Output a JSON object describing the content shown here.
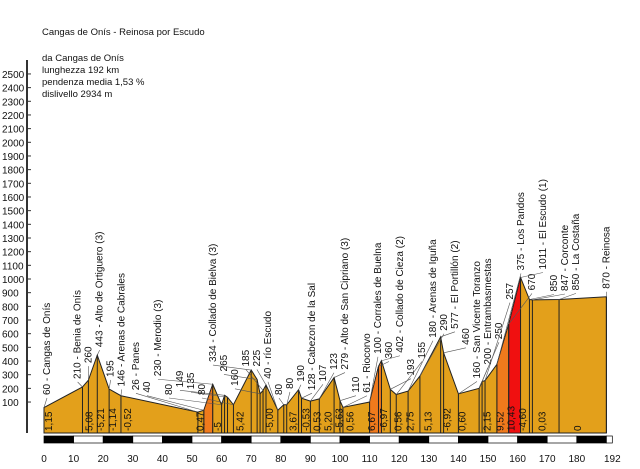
{
  "chart_data": {
    "type": "area",
    "title": "Cangas de Onís - Reinosa por Escudo",
    "info": [
      "da Cangas de Onís",
      "lunghezza 192 km",
      "pendenza media 1,53 %",
      "dislivello 2934 m"
    ],
    "xlabel": "km",
    "ylabel": "m",
    "xlim": [
      0,
      192
    ],
    "ylim": [
      0,
      2500
    ],
    "x_ticks": [
      0,
      10,
      20,
      30,
      40,
      50,
      60,
      70,
      80,
      90,
      100,
      110,
      120,
      130,
      140,
      150,
      160,
      170,
      180,
      192
    ],
    "y_ticks": [
      100,
      200,
      300,
      400,
      500,
      600,
      700,
      800,
      900,
      1000,
      1100,
      1200,
      1300,
      1400,
      1500,
      1600,
      1700,
      1800,
      1900,
      2000,
      2100,
      2200,
      2300,
      2400,
      2500
    ],
    "colors": {
      "fill": "#e3a01b",
      "steep": "#f07a1c",
      "very_steep": "#f01010",
      "line": "#222222"
    },
    "profile": [
      {
        "km": 0,
        "elev": 60,
        "label": "60 - Cangas de Onís"
      },
      {
        "km": 13,
        "elev": 210,
        "label": "210 - Benia de Onís"
      },
      {
        "km": 15,
        "elev": 260,
        "label": "260"
      },
      {
        "km": 18,
        "elev": 443,
        "label": "443 - Alto de Ortiguero (3)"
      },
      {
        "km": 22,
        "elev": 195,
        "label": "195"
      },
      {
        "km": 26,
        "elev": 146,
        "label": "146 - Arenas de Cabrales"
      },
      {
        "km": 52,
        "elev": 26,
        "label": "26 - Panes"
      },
      {
        "km": 54,
        "elev": 40,
        "label": "40"
      },
      {
        "km": 57,
        "elev": 230,
        "label": "230 - Merodio (3)"
      },
      {
        "km": 60,
        "elev": 80,
        "label": "80"
      },
      {
        "km": 61,
        "elev": 149,
        "label": "149"
      },
      {
        "km": 62,
        "elev": 135,
        "label": "135"
      },
      {
        "km": 64,
        "elev": 80,
        "label": "80"
      },
      {
        "km": 70,
        "elev": 334,
        "label": "334 - Collado de Bielva (3)"
      },
      {
        "km": 72,
        "elev": 265,
        "label": "265"
      },
      {
        "km": 73,
        "elev": 160,
        "label": "160"
      },
      {
        "km": 74,
        "elev": 185,
        "label": "185"
      },
      {
        "km": 75,
        "elev": 225,
        "label": "225"
      },
      {
        "km": 79,
        "elev": 40,
        "label": "40 - río Escudo"
      },
      {
        "km": 81,
        "elev": 80,
        "label": "80"
      },
      {
        "km": 82,
        "elev": 80,
        "label": "80"
      },
      {
        "km": 86,
        "elev": 190,
        "label": "190"
      },
      {
        "km": 87,
        "elev": 128,
        "label": "128 - Cabezon de la Sal"
      },
      {
        "km": 90,
        "elev": 107,
        "label": "107"
      },
      {
        "km": 93,
        "elev": 123,
        "label": "123"
      },
      {
        "km": 98,
        "elev": 279,
        "label": "279 - Alto de San Cipriano (3)"
      },
      {
        "km": 100,
        "elev": 110,
        "label": "110"
      },
      {
        "km": 101,
        "elev": 61,
        "label": "61 - Riocorvo"
      },
      {
        "km": 110,
        "elev": 100,
        "label": "100 - Corrales de Buelna"
      },
      {
        "km": 113,
        "elev": 360,
        "label": "360"
      },
      {
        "km": 114,
        "elev": 402,
        "label": "402 - Collado de Cieza (2)"
      },
      {
        "km": 117,
        "elev": 193,
        "label": "193"
      },
      {
        "km": 119,
        "elev": 155,
        "label": "155"
      },
      {
        "km": 123,
        "elev": 180,
        "label": "180 - Arenas de Iguña"
      },
      {
        "km": 127,
        "elev": 290,
        "label": "290"
      },
      {
        "km": 134,
        "elev": 577,
        "label": "577 - El Portillón (2)"
      },
      {
        "km": 135,
        "elev": 460,
        "label": "460"
      },
      {
        "km": 140,
        "elev": 160,
        "label": "160 - San Vicente Toranzo"
      },
      {
        "km": 147,
        "elev": 200,
        "label": "200 - Entrambasmestas"
      },
      {
        "km": 148,
        "elev": 250,
        "label": "250"
      },
      {
        "km": 149,
        "elev": 257,
        "label": "257"
      },
      {
        "km": 153,
        "elev": 375,
        "label": "375 - Los Pandos"
      },
      {
        "km": 157,
        "elev": 670,
        "label": "670"
      },
      {
        "km": 161,
        "elev": 1011,
        "label": "1011 - El Escudo (1)"
      },
      {
        "km": 164,
        "elev": 850,
        "label": "850"
      },
      {
        "km": 165,
        "elev": 847,
        "label": "847 - Corconte"
      },
      {
        "km": 174,
        "elev": 850,
        "label": "850 - La Costaña"
      },
      {
        "km": 190,
        "elev": 870,
        "label": "870 - Reinosa"
      }
    ],
    "highlights": [
      {
        "from": 54,
        "to": 57,
        "color": "steep"
      },
      {
        "from": 110,
        "to": 114,
        "color": "steep"
      },
      {
        "from": 153,
        "to": 157,
        "color": "steep"
      },
      {
        "from": 157,
        "to": 161,
        "color": "very_steep"
      }
    ],
    "gradients": [
      {
        "km": 1,
        "text": "1,15"
      },
      {
        "km": 15,
        "text": "5,08"
      },
      {
        "km": 19,
        "text": "-5,21"
      },
      {
        "km": 23,
        "text": "-1,14"
      },
      {
        "km": 28,
        "text": "-0,52"
      },
      {
        "km": 52.5,
        "text": "0,47"
      },
      {
        "km": 58.5,
        "text": "-5"
      },
      {
        "km": 66,
        "text": "5,42"
      },
      {
        "km": 76,
        "text": "-5,00"
      },
      {
        "km": 84,
        "text": "3,67"
      },
      {
        "km": 89,
        "text": "-0,53"
      },
      {
        "km": 93,
        "text": "0,53"
      },
      {
        "km": 95.5,
        "text": "5,20"
      },
      {
        "km": 98.8,
        "text": "-5,63"
      },
      {
        "km": 103,
        "text": "0,56"
      },
      {
        "km": 110.5,
        "text": "6,67"
      },
      {
        "km": 114.5,
        "text": "-6,97"
      },
      {
        "km": 119.5,
        "text": "0,56"
      },
      {
        "km": 123.5,
        "text": "2,75"
      },
      {
        "km": 129.5,
        "text": "5,13"
      },
      {
        "km": 136,
        "text": "-6,92"
      },
      {
        "km": 141,
        "text": "0,60"
      },
      {
        "km": 149.5,
        "text": "2,15"
      },
      {
        "km": 154,
        "text": "9,52"
      },
      {
        "km": 157.5,
        "text": "10,43"
      },
      {
        "km": 161.5,
        "text": "-4,60"
      },
      {
        "km": 168,
        "text": "0,03"
      },
      {
        "km": 180,
        "text": "0"
      }
    ]
  }
}
